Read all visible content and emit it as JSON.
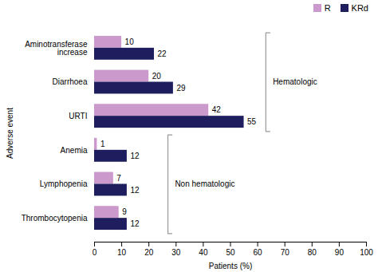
{
  "chart_data": {
    "type": "bar",
    "orientation": "horizontal",
    "categories": [
      "Aminotransferase\nincrease",
      "Diarrhoea",
      "URTI",
      "Anemia",
      "Lymphopenia",
      "Thrombocytopenia"
    ],
    "series": [
      {
        "name": "R",
        "color": "#cc99cc",
        "values": [
          10,
          20,
          42,
          1,
          7,
          9
        ]
      },
      {
        "name": "KRd",
        "color": "#1e1e5e",
        "values": [
          22,
          29,
          55,
          12,
          12,
          12
        ]
      }
    ],
    "xlabel": "Patients (%)",
    "ylabel": "Adverse event",
    "xlim": [
      0,
      100
    ],
    "xticks": [
      0,
      10,
      20,
      30,
      40,
      50,
      60,
      70,
      80,
      90,
      100
    ],
    "grid": false,
    "legend": "upper right",
    "data_labels": true,
    "annotations": [
      {
        "text": "Hematologic",
        "x": 63,
        "categories": [
          "Aminotransferase\nincrease",
          "Diarrhoea",
          "URTI"
        ],
        "color": "#999999"
      },
      {
        "text": "Non hematologic",
        "x": 27,
        "categories": [
          "Anemia",
          "Lymphopenia",
          "Thrombocytopenia"
        ],
        "color": "#999999"
      }
    ]
  }
}
